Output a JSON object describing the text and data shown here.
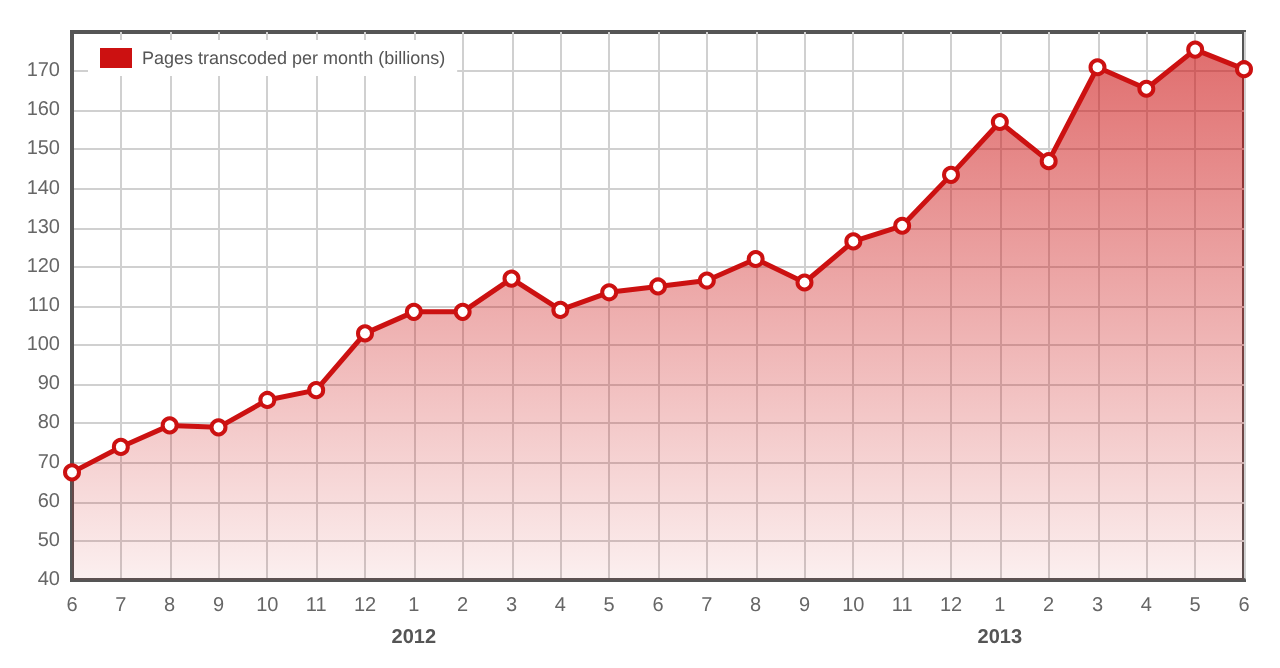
{
  "chart_data": {
    "type": "area",
    "x": [
      "2011-06",
      "2011-07",
      "2011-08",
      "2011-09",
      "2011-10",
      "2011-11",
      "2011-12",
      "2012-01",
      "2012-02",
      "2012-03",
      "2012-04",
      "2012-05",
      "2012-06",
      "2012-07",
      "2012-08",
      "2012-09",
      "2012-10",
      "2012-11",
      "2012-12",
      "2013-01",
      "2013-02",
      "2013-03",
      "2013-04",
      "2013-05",
      "2013-06"
    ],
    "series": [
      {
        "name": "Pages transcoded per month (billions)",
        "color": "#cc1111",
        "values": [
          67.5,
          74,
          79.5,
          79,
          86,
          88.5,
          103,
          108.5,
          108.5,
          117,
          109,
          113.5,
          115,
          116.5,
          122,
          116,
          126.5,
          130.5,
          143.5,
          157,
          147,
          171,
          165.5,
          175.5,
          170.5
        ]
      }
    ],
    "xlim": [
      "2011-06",
      "2013-06"
    ],
    "xticks": [
      {
        "value": "2011-06",
        "label": "6"
      },
      {
        "value": "2011-07",
        "label": "7"
      },
      {
        "value": "2011-08",
        "label": "8"
      },
      {
        "value": "2011-09",
        "label": "9"
      },
      {
        "value": "2011-10",
        "label": "10"
      },
      {
        "value": "2011-11",
        "label": "11"
      },
      {
        "value": "2011-12",
        "label": "12"
      },
      {
        "value": "2012-01",
        "label": "1"
      },
      {
        "value": "2012-02",
        "label": "2"
      },
      {
        "value": "2012-03",
        "label": "3"
      },
      {
        "value": "2012-04",
        "label": "4"
      },
      {
        "value": "2012-05",
        "label": "5"
      },
      {
        "value": "2012-06",
        "label": "6"
      },
      {
        "value": "2012-07",
        "label": "7"
      },
      {
        "value": "2012-08",
        "label": "8"
      },
      {
        "value": "2012-09",
        "label": "9"
      },
      {
        "value": "2012-10",
        "label": "10"
      },
      {
        "value": "2012-11",
        "label": "11"
      },
      {
        "value": "2012-12",
        "label": "12"
      },
      {
        "value": "2013-01",
        "label": "1"
      },
      {
        "value": "2013-02",
        "label": "2"
      },
      {
        "value": "2013-03",
        "label": "3"
      },
      {
        "value": "2013-04",
        "label": "4"
      },
      {
        "value": "2013-05",
        "label": "5"
      },
      {
        "value": "2013-06",
        "label": "6"
      }
    ],
    "ylim": [
      40,
      180
    ],
    "yticks": [
      40,
      50,
      60,
      70,
      80,
      90,
      100,
      110,
      120,
      130,
      140,
      150,
      160,
      170
    ],
    "x2lim": [
      "2011-06",
      "2013-06"
    ],
    "x2ticks": [
      {
        "value": "2012-01",
        "label": "2012"
      },
      {
        "value": "2013-01",
        "label": "2013"
      }
    ],
    "grid": true,
    "legend": "top left",
    "marker": "circle",
    "line_style": "solid"
  }
}
